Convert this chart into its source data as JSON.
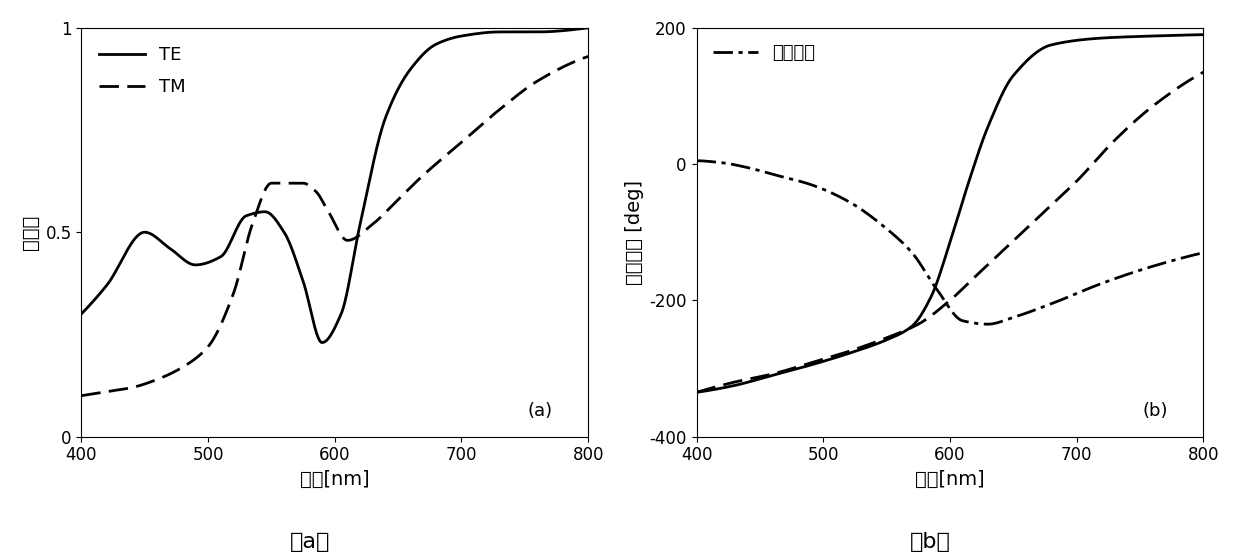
{
  "xlim": [
    400,
    800
  ],
  "xlabel": "波长[nm]",
  "caption_a": "（a）",
  "caption_b": "（b）",
  "plot_a": {
    "ylabel": "透射率",
    "yticks": [
      0,
      0.5,
      1
    ],
    "ylim": [
      0,
      1
    ],
    "xticks": [
      400,
      500,
      600,
      700,
      800
    ],
    "legend_TE": "TE",
    "legend_TM": "TM",
    "annotation": "(a)"
  },
  "plot_b": {
    "ylabel": "相位变变 [deg]",
    "yticks": [
      -400,
      -200,
      0,
      200
    ],
    "ylim": [
      -400,
      200
    ],
    "xticks": [
      400,
      500,
      600,
      700,
      800
    ],
    "legend_delay": "相位延迟",
    "annotation": "(b)"
  },
  "line_color": "#000000",
  "linewidth": 2.0,
  "fontsize_label": 14,
  "fontsize_tick": 12,
  "fontsize_legend": 13,
  "fontsize_annotation": 13,
  "fontsize_caption": 16,
  "te_x": [
    400,
    420,
    450,
    470,
    490,
    510,
    530,
    545,
    560,
    575,
    590,
    605,
    620,
    640,
    660,
    680,
    700,
    730,
    760,
    800
  ],
  "te_y": [
    0.3,
    0.37,
    0.5,
    0.46,
    0.42,
    0.44,
    0.54,
    0.55,
    0.5,
    0.38,
    0.23,
    0.3,
    0.52,
    0.78,
    0.9,
    0.96,
    0.98,
    0.99,
    0.99,
    1.0
  ],
  "tm_x": [
    400,
    420,
    440,
    460,
    480,
    500,
    520,
    535,
    550,
    565,
    575,
    585,
    595,
    610,
    630,
    650,
    670,
    700,
    730,
    760,
    800
  ],
  "tm_y": [
    0.1,
    0.11,
    0.12,
    0.14,
    0.17,
    0.22,
    0.35,
    0.52,
    0.62,
    0.62,
    0.62,
    0.6,
    0.55,
    0.48,
    0.52,
    0.58,
    0.64,
    0.72,
    0.8,
    0.87,
    0.93
  ],
  "ph_te_x": [
    400,
    430,
    460,
    490,
    520,
    550,
    570,
    585,
    600,
    615,
    630,
    650,
    680,
    720,
    760,
    800
  ],
  "ph_te_y": [
    -335,
    -325,
    -310,
    -295,
    -278,
    -258,
    -238,
    -195,
    -115,
    -25,
    55,
    130,
    175,
    185,
    188,
    190
  ],
  "ph_tm_x": [
    400,
    430,
    460,
    490,
    520,
    550,
    575,
    600,
    620,
    640,
    660,
    680,
    700,
    730,
    760,
    800
  ],
  "ph_tm_y": [
    -335,
    -320,
    -308,
    -292,
    -275,
    -255,
    -235,
    -200,
    -165,
    -130,
    -95,
    -60,
    -25,
    35,
    85,
    135
  ],
  "ph_delay_x": [
    400,
    420,
    440,
    460,
    490,
    520,
    550,
    570,
    590,
    610,
    630,
    650,
    680,
    720,
    760,
    800
  ],
  "ph_delay_y": [
    5,
    2,
    -5,
    -15,
    -30,
    -55,
    -95,
    -130,
    -185,
    -230,
    -235,
    -225,
    -205,
    -175,
    -150,
    -130
  ]
}
